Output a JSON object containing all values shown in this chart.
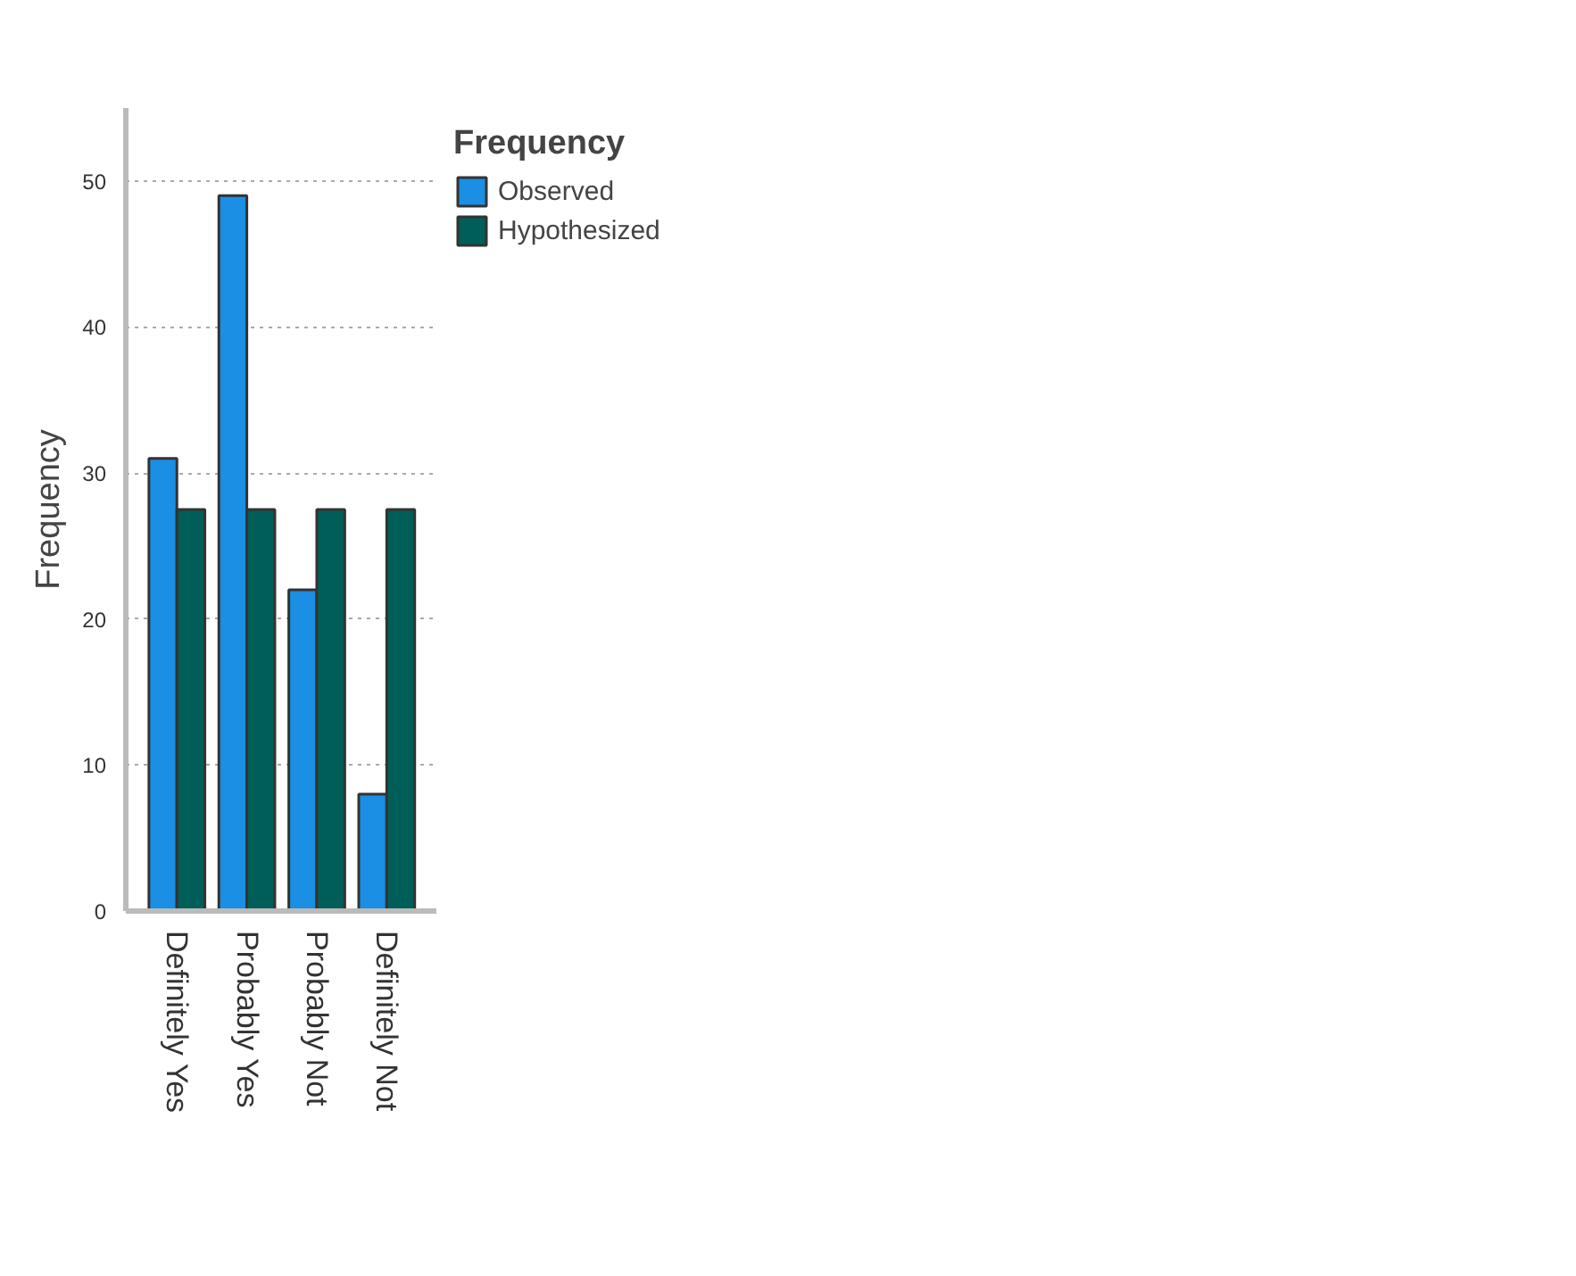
{
  "chart_data": {
    "type": "bar",
    "ylabel": "Frequency",
    "legend_title": "Frequency",
    "categories": [
      "Definitely Yes",
      "Probably Yes",
      "Probably Not",
      "Definitely Not"
    ],
    "series": [
      {
        "name": "Observed",
        "color": "#1a8fe3",
        "values": [
          31,
          49,
          22,
          8
        ]
      },
      {
        "name": "Hypothesized",
        "color": "#005e58",
        "values": [
          27.5,
          27.5,
          27.5,
          27.5
        ]
      }
    ],
    "ylim": [
      0,
      55
    ],
    "yticks": [
      0,
      10,
      20,
      30,
      40,
      50
    ],
    "grid": "y",
    "legend": "top right"
  }
}
